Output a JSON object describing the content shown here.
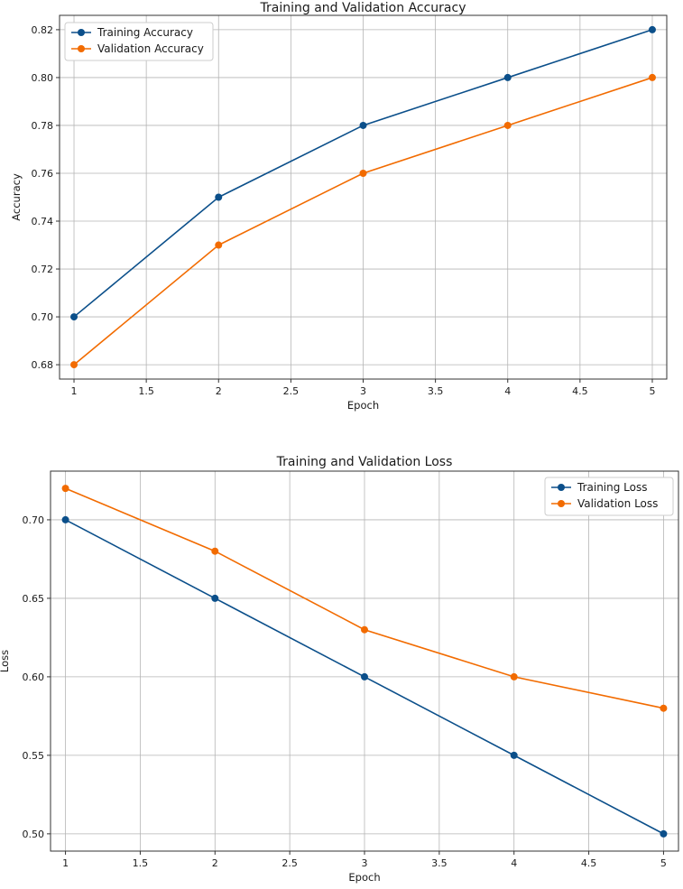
{
  "chart_data": [
    {
      "type": "line",
      "title": "Training and Validation Accuracy",
      "xlabel": "Epoch",
      "ylabel": "Accuracy",
      "x": [
        1,
        2,
        3,
        4,
        5
      ],
      "xlim": [
        0.9,
        5.1
      ],
      "ylim": [
        0.674,
        0.826
      ],
      "xticks": [
        1.0,
        1.5,
        2.0,
        2.5,
        3.0,
        3.5,
        4.0,
        4.5,
        5.0
      ],
      "yticks": [
        0.68,
        0.7,
        0.72,
        0.74,
        0.76,
        0.78,
        0.8,
        0.82
      ],
      "grid": true,
      "legend_position": "top-left",
      "series": [
        {
          "name": "Training Accuracy",
          "values": [
            0.7,
            0.75,
            0.78,
            0.8,
            0.82
          ],
          "color": "#0b4f8a"
        },
        {
          "name": "Validation Accuracy",
          "values": [
            0.68,
            0.73,
            0.76,
            0.78,
            0.8
          ],
          "color": "#f26b00"
        }
      ]
    },
    {
      "type": "line",
      "title": "Training and Validation Loss",
      "xlabel": "Epoch",
      "ylabel": "Loss",
      "x": [
        1,
        2,
        3,
        4,
        5
      ],
      "xlim": [
        0.9,
        5.1
      ],
      "ylim": [
        0.489,
        0.731
      ],
      "xticks": [
        1.0,
        1.5,
        2.0,
        2.5,
        3.0,
        3.5,
        4.0,
        4.5,
        5.0
      ],
      "yticks": [
        0.5,
        0.55,
        0.6,
        0.65,
        0.7
      ],
      "grid": true,
      "legend_position": "top-right",
      "series": [
        {
          "name": "Training Loss",
          "values": [
            0.7,
            0.65,
            0.6,
            0.55,
            0.5
          ],
          "color": "#0b4f8a"
        },
        {
          "name": "Validation Loss",
          "values": [
            0.72,
            0.68,
            0.63,
            0.6,
            0.58
          ],
          "color": "#f26b00"
        }
      ]
    }
  ]
}
